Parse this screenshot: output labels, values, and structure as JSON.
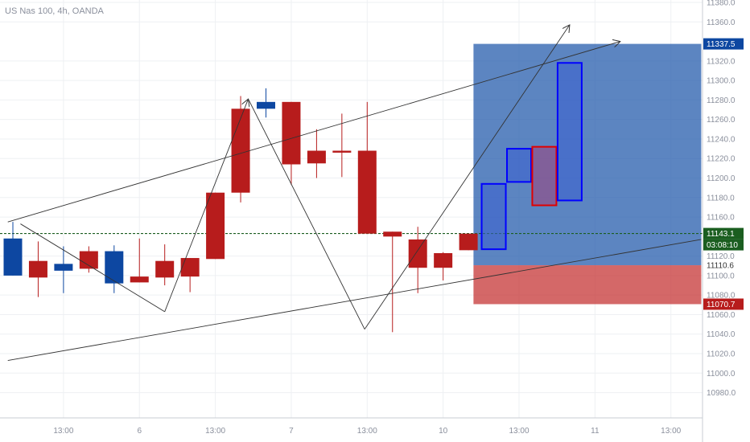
{
  "chart_data": {
    "type": "candlestick",
    "title": "US Nas 100, 4h, OANDA",
    "colors": {
      "up": "#0d47a1",
      "down": "#b71c1c",
      "grid": "#eef0f3"
    },
    "ylim": [
      10950,
      11380
    ],
    "y_ticks": [
      10980,
      11000,
      11020,
      11040,
      11060,
      11080,
      11100,
      11120,
      11160,
      11180,
      11200,
      11220,
      11240,
      11260,
      11280,
      11300,
      11320,
      11360,
      11380
    ],
    "x_ticks": [
      {
        "i": 2,
        "label": "13:00"
      },
      {
        "i": 5,
        "label": "6"
      },
      {
        "i": 8,
        "label": "13:00"
      },
      {
        "i": 11,
        "label": "7"
      },
      {
        "i": 14,
        "label": "13:00"
      },
      {
        "i": 17,
        "label": "10"
      },
      {
        "i": 20,
        "label": "13:00"
      },
      {
        "i": 23,
        "label": "11"
      },
      {
        "i": 26,
        "label": "13:00"
      }
    ],
    "candles": [
      {
        "i": 0,
        "open": 11100,
        "high": 11155,
        "low": 11100,
        "close": 11138
      },
      {
        "i": 1,
        "open": 11115,
        "high": 11135,
        "low": 11078,
        "close": 11098
      },
      {
        "i": 2,
        "open": 11105,
        "high": 11130,
        "low": 11082,
        "close": 11112
      },
      {
        "i": 3,
        "open": 11125,
        "high": 11130,
        "low": 11103,
        "close": 11107
      },
      {
        "i": 4,
        "open": 11092,
        "high": 11131,
        "low": 11082,
        "close": 11125
      },
      {
        "i": 5,
        "open": 11099,
        "high": 11138,
        "low": 11093,
        "close": 11093
      },
      {
        "i": 6,
        "open": 11115,
        "high": 11132,
        "low": 11090,
        "close": 11098
      },
      {
        "i": 7,
        "open": 11118,
        "high": 11116,
        "low": 11083,
        "close": 11099
      },
      {
        "i": 8,
        "open": 11185,
        "high": 11185,
        "low": 11117,
        "close": 11117
      },
      {
        "i": 9,
        "open": 11271,
        "high": 11284,
        "low": 11175,
        "close": 11185
      },
      {
        "i": 10,
        "open": 11271,
        "high": 11292,
        "low": 11262,
        "close": 11278
      },
      {
        "i": 11,
        "open": 11278,
        "high": 11278,
        "low": 11193,
        "close": 11214
      },
      {
        "i": 12,
        "open": 11228,
        "high": 11250,
        "low": 11200,
        "close": 11215
      },
      {
        "i": 13,
        "open": 11228,
        "high": 11266,
        "low": 11201,
        "close": 11226
      },
      {
        "i": 14,
        "open": 11228,
        "high": 11278,
        "low": 11143,
        "close": 11143
      },
      {
        "i": 15,
        "open": 11145,
        "high": 11145,
        "low": 11042,
        "close": 11140
      },
      {
        "i": 16,
        "open": 11137,
        "high": 11150,
        "low": 11082,
        "close": 11108
      },
      {
        "i": 17,
        "open": 11123,
        "high": 11124,
        "low": 11095,
        "close": 11108
      },
      {
        "i": 18,
        "open": 11143,
        "high": 11143,
        "low": 11126,
        "close": 11126
      }
    ],
    "projection_boxes": [
      {
        "i": 19,
        "low": 11127,
        "high": 11194,
        "color": "#0d47a1"
      },
      {
        "i": 20,
        "low": 11196,
        "high": 11230,
        "color": "#0d47a1"
      },
      {
        "i": 21,
        "low": 11172,
        "high": 11232,
        "color": "#b71c1c"
      },
      {
        "i": 22,
        "low": 11177,
        "high": 11318,
        "color": "#0d47a1"
      }
    ],
    "reward_zone": {
      "i0": 18.2,
      "i1": 27.2,
      "low": 11110.6,
      "high": 11337.5
    },
    "risk_zone": {
      "i0": 18.2,
      "i1": 27.2,
      "low": 11070.7,
      "high": 11110.6
    },
    "current_price": 11143.1,
    "zigzag": [
      {
        "i": 0.3,
        "p": 11153
      },
      {
        "i": 6.0,
        "p": 11063
      },
      {
        "i": 9.3,
        "p": 11281
      },
      {
        "i": 13.9,
        "p": 11045
      },
      {
        "i": 22.0,
        "p": 11357
      }
    ],
    "trend_lines": [
      {
        "from": {
          "i": -0.2,
          "p": 11155
        },
        "to": {
          "i": 24.0,
          "p": 11340
        },
        "arrow": true
      },
      {
        "from": {
          "i": -0.2,
          "p": 11013
        },
        "to": {
          "i": 27.2,
          "p": 11137
        },
        "arrow": false
      }
    ],
    "price_labels": [
      {
        "price": 11337.5,
        "text": "11337.5",
        "bg": "#0d47a1"
      },
      {
        "price": 11143.1,
        "text": "11143.1",
        "bg": "#1b5e20"
      },
      {
        "price": 11110.6,
        "text": "11110.6",
        "bg": ""
      },
      {
        "price": 11070.7,
        "text": "11070.7",
        "bg": "#b71c1c"
      }
    ],
    "countdown": "03:08:10"
  }
}
